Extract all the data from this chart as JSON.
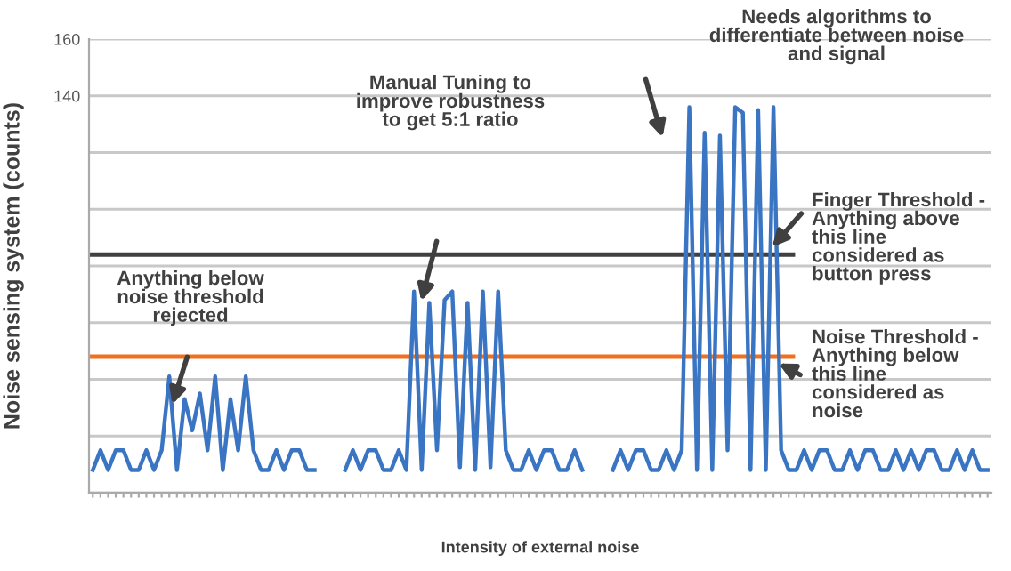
{
  "chart_data": {
    "type": "line",
    "xlabel": "Intensity of external noise",
    "ylabel": "Noise sensing system (counts)",
    "categories": [
      null,
      null,
      null,
      null,
      null,
      null,
      null,
      null,
      null,
      null,
      null,
      null,
      null,
      null,
      null,
      null,
      null,
      null,
      null,
      null,
      null,
      null,
      null,
      null,
      null,
      null,
      null,
      null,
      null,
      null,
      null,
      null,
      null,
      null,
      null,
      null,
      null,
      null,
      null,
      null,
      null,
      null,
      null,
      null,
      null,
      null,
      null,
      null,
      null,
      null,
      null,
      null,
      null,
      null,
      null,
      null,
      null,
      null,
      null,
      null,
      null,
      null,
      null,
      null,
      null,
      null,
      null,
      null,
      null,
      null,
      null,
      null,
      null,
      null,
      null,
      null,
      null,
      null,
      null,
      null,
      null,
      null,
      null,
      null,
      null,
      null,
      null,
      null,
      null,
      null,
      null,
      null,
      null,
      null,
      null,
      null,
      null,
      null,
      null,
      null,
      null,
      null,
      null,
      null,
      null,
      null,
      null,
      null,
      null,
      null,
      null,
      null,
      null,
      null,
      null,
      null,
      null,
      null
    ],
    "series": [
      {
        "color": "#3a75c4",
        "values": [
          8,
          15,
          8,
          15,
          15,
          8,
          8,
          15,
          8,
          15,
          41,
          8,
          33,
          22,
          35,
          15,
          41,
          8,
          33,
          15,
          41,
          15,
          8,
          8,
          15,
          8,
          15,
          15,
          8,
          8,
          null,
          null,
          null,
          8,
          15,
          8,
          15,
          15,
          8,
          8,
          15,
          8,
          71,
          8,
          67,
          15,
          68,
          71,
          9,
          67,
          8,
          71,
          9,
          71,
          15,
          8,
          8,
          15,
          8,
          15,
          15,
          8,
          8,
          15,
          8,
          null,
          null,
          null,
          8,
          15,
          8,
          15,
          15,
          8,
          8,
          15,
          8,
          15,
          136,
          8,
          127,
          8,
          126,
          15,
          136,
          134,
          8,
          135,
          8,
          136,
          15,
          8,
          8,
          15,
          8,
          15,
          15,
          8,
          8,
          15,
          8,
          15,
          15,
          8,
          8,
          15,
          8,
          15,
          8,
          15,
          15,
          8,
          8,
          15,
          8,
          15,
          8,
          8
        ]
      }
    ],
    "ylim": [
      0,
      160
    ],
    "yticks": [
      {
        "value": 0,
        "label": null
      },
      {
        "value": 20,
        "label": null
      },
      {
        "value": 40,
        "label": null
      },
      {
        "value": 60,
        "label": null
      },
      {
        "value": 80,
        "label": null
      },
      {
        "value": 100,
        "label": null
      },
      {
        "value": 120,
        "label": null
      },
      140,
      160
    ],
    "grid": "y",
    "line_style": "solid",
    "marker": "none",
    "ref_lines": [
      {
        "axis": "y",
        "value": 84,
        "color": "#404040",
        "line_style": "solid",
        "label": "Finger Threshold -\nAnything above\nthis line\nconsidered as\nbutton press"
      },
      {
        "axis": "y",
        "value": 48,
        "color": "#f07020",
        "line_style": "solid",
        "label": "Noise Threshold -\nAnything below\nthis line\nconsidered as\nnoise"
      }
    ],
    "annotations": [
      "Needs algorithms to\ndifferentiate between noise\nand signal",
      "Manual Tuning to\nimprove robustness\nto get 5:1 ratio",
      "Anything below\nnoise threshold\nrejected"
    ]
  }
}
